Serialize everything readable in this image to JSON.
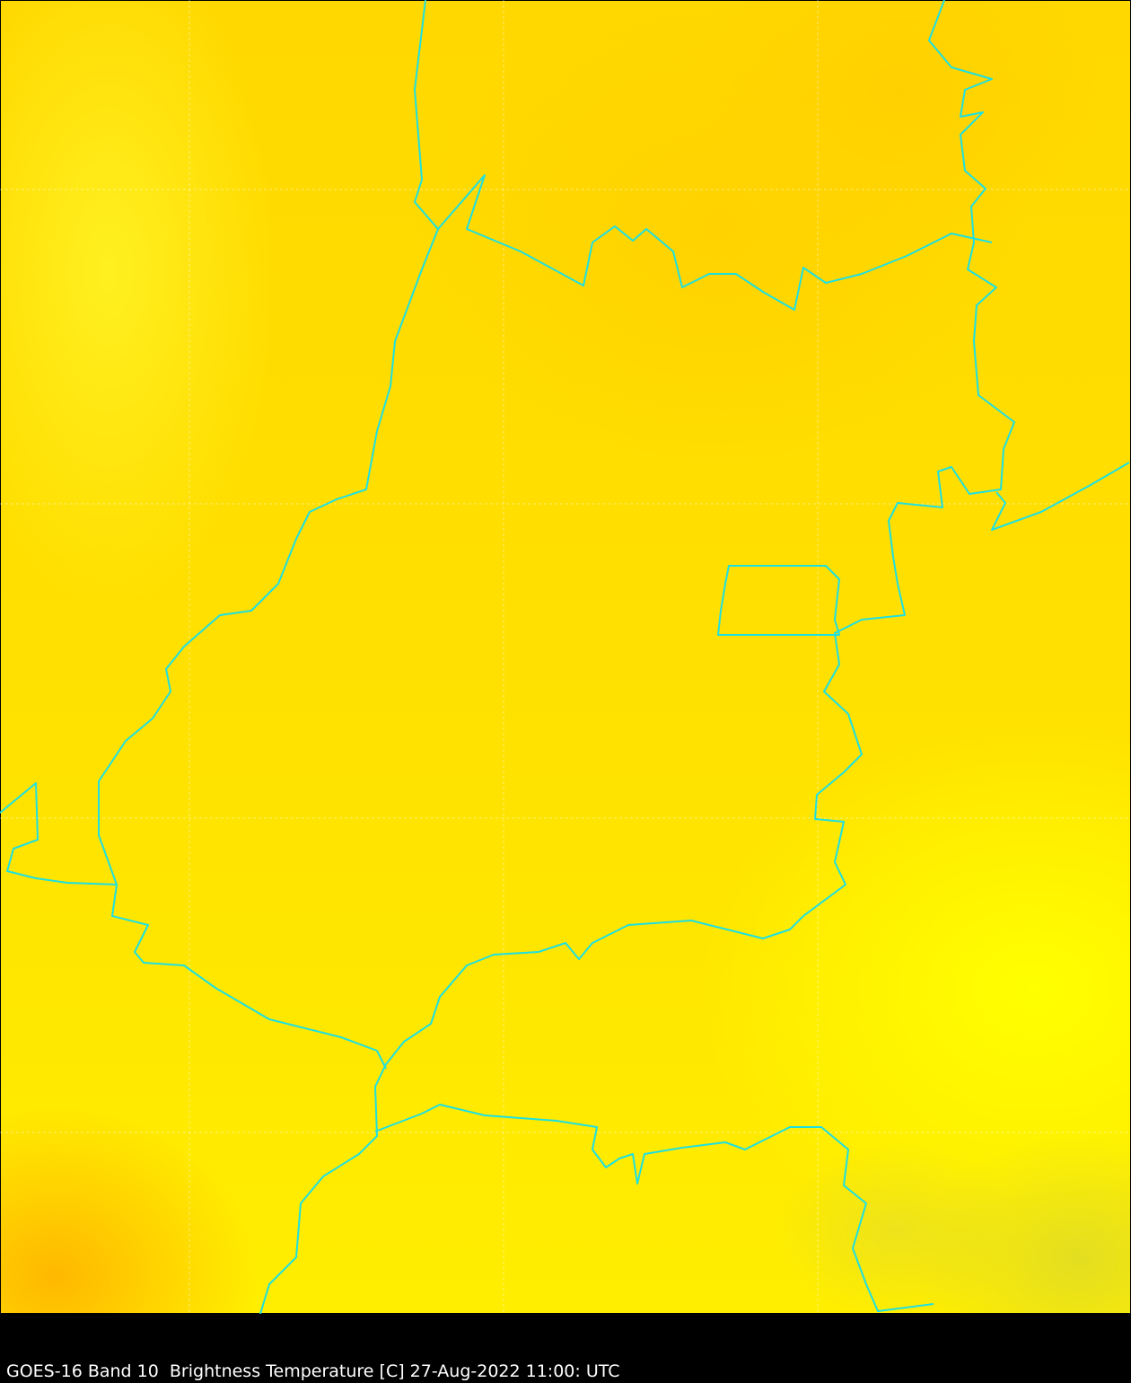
{
  "caption": "GOES-16 Band 10  Brightness Temperature [C] 27-Aug-2022 11:00: UTC",
  "colors": {
    "border_lines": "#1ee0e0",
    "field_warm": "#ffd400",
    "field_cool": "#ffff00",
    "background": "#000000"
  },
  "gridlines": "dashed, light"
}
